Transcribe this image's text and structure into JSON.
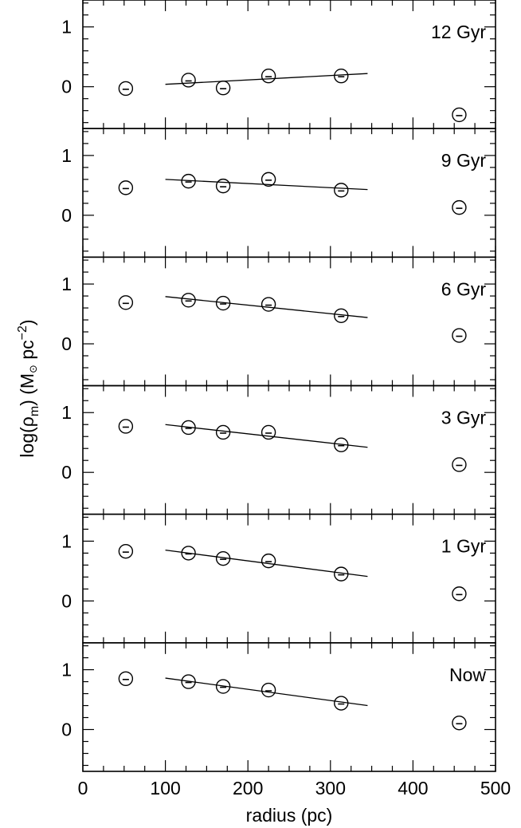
{
  "chart_data": {
    "type": "scatter",
    "xlabel": "radius (pc)",
    "ylabel_parts": {
      "prefix": "log(ρ",
      "sub": "m",
      "mid": ") (M",
      "sun": "⊙",
      "unit": " pc",
      "sup": "−2",
      "suffix": ")"
    },
    "xlim": [
      0,
      500
    ],
    "ylim": [
      -0.7,
      1.45
    ],
    "x_ticks": [
      0,
      100,
      200,
      300,
      400,
      500
    ],
    "x_tick_labels": [
      "0",
      "100",
      "200",
      "300",
      "400",
      "500"
    ],
    "y_ticks": [
      0,
      1
    ],
    "y_tick_labels": [
      "0",
      "1"
    ],
    "grid": false,
    "legend": "none",
    "marker": "circle-with-bar",
    "panels": [
      {
        "label": "12 Gyr",
        "x": [
          52,
          128,
          170,
          225,
          313,
          456
        ],
        "y": [
          -0.03,
          0.11,
          -0.02,
          0.18,
          0.18,
          -0.47
        ],
        "fit": {
          "x": [
            100,
            345
          ],
          "y": [
            0.04,
            0.22
          ]
        }
      },
      {
        "label": "9 Gyr",
        "x": [
          52,
          128,
          170,
          225,
          313,
          456
        ],
        "y": [
          0.46,
          0.57,
          0.49,
          0.6,
          0.42,
          0.13
        ],
        "fit": {
          "x": [
            100,
            345
          ],
          "y": [
            0.6,
            0.43
          ]
        }
      },
      {
        "label": "6 Gyr",
        "x": [
          52,
          128,
          170,
          225,
          313,
          456
        ],
        "y": [
          0.69,
          0.73,
          0.68,
          0.66,
          0.47,
          0.14
        ],
        "fit": {
          "x": [
            100,
            345
          ],
          "y": [
            0.79,
            0.44
          ]
        }
      },
      {
        "label": "3 Gyr",
        "x": [
          52,
          128,
          170,
          225,
          313,
          456
        ],
        "y": [
          0.77,
          0.75,
          0.67,
          0.67,
          0.46,
          0.13
        ],
        "fit": {
          "x": [
            100,
            345
          ],
          "y": [
            0.8,
            0.42
          ]
        }
      },
      {
        "label": "1 Gyr",
        "x": [
          52,
          128,
          170,
          225,
          313,
          456
        ],
        "y": [
          0.83,
          0.8,
          0.71,
          0.67,
          0.45,
          0.12
        ],
        "fit": {
          "x": [
            100,
            345
          ],
          "y": [
            0.85,
            0.41
          ]
        }
      },
      {
        "label": "Now",
        "x": [
          52,
          128,
          170,
          225,
          313,
          456
        ],
        "y": [
          0.85,
          0.8,
          0.72,
          0.66,
          0.44,
          0.11
        ],
        "fit": {
          "x": [
            100,
            345
          ],
          "y": [
            0.86,
            0.4
          ]
        }
      }
    ]
  }
}
